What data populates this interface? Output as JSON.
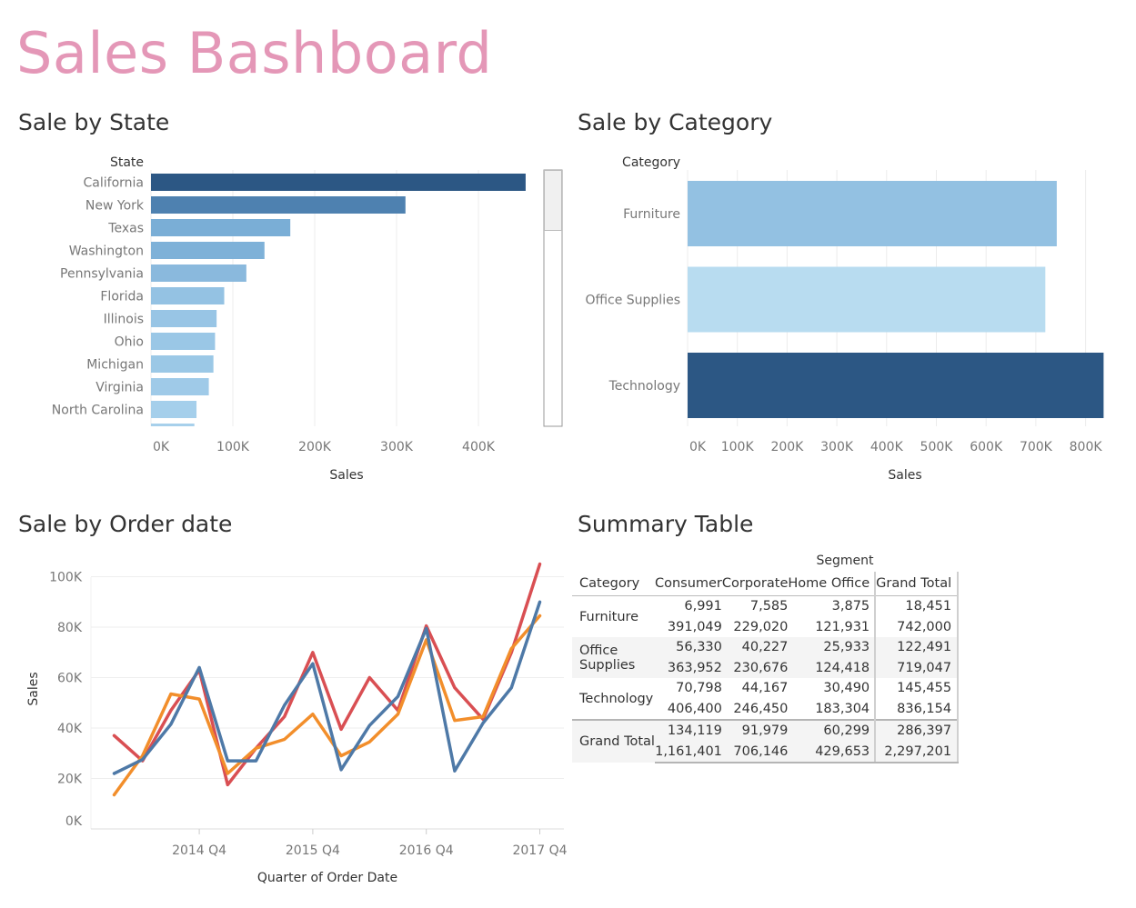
{
  "dashboard": {
    "title": "Sales Bashboard"
  },
  "panels": {
    "state": {
      "title": "Sale by State"
    },
    "category": {
      "title": "Sale by Category"
    },
    "order_date": {
      "title": "Sale by Order date"
    },
    "summary": {
      "title": "Summary Table"
    }
  },
  "colors": {
    "title_pink": "#e497b7",
    "dark_blue": "#2c5784",
    "furniture": "#93c1e2",
    "office_supplies": "#b8dcf0",
    "technology": "#2c5784",
    "line_red": "#d94f53",
    "line_orange": "#f28e2b",
    "line_blue": "#4e79a7"
  },
  "chart_data": [
    {
      "id": "state",
      "type": "bar",
      "orientation": "horizontal",
      "header": "State",
      "categories": [
        "California",
        "New York",
        "Texas",
        "Washington",
        "Pennsylvania",
        "Florida",
        "Illinois",
        "Ohio",
        "Michigan",
        "Virginia",
        "North Carolina"
      ],
      "values": [
        457688,
        310876,
        170188,
        138641,
        116512,
        89474,
        80166,
        78258,
        76270,
        70637,
        55603
      ],
      "colors": [
        "#2c5784",
        "#4e81b0",
        "#7aaed6",
        "#7eb1d8",
        "#8ab9dd",
        "#94c2e3",
        "#98c5e5",
        "#9ac7e6",
        "#9bc8e6",
        "#9fcae8",
        "#a5cfeb"
      ],
      "partial_next_bar": {
        "value": 53000,
        "color": "#a7d0eb"
      },
      "xlabel": "Sales",
      "xticks": [
        0,
        100000,
        200000,
        300000,
        400000
      ],
      "xtick_labels": [
        "0K",
        "100K",
        "200K",
        "300K",
        "400K"
      ],
      "xlim": [
        0,
        500000
      ]
    },
    {
      "id": "category",
      "type": "bar",
      "orientation": "horizontal",
      "header": "Category",
      "categories": [
        "Furniture",
        "Office Supplies",
        "Technology"
      ],
      "values": [
        742000,
        719047,
        836154
      ],
      "colors": [
        "#93c1e2",
        "#b8dcf0",
        "#2c5784"
      ],
      "xlabel": "Sales",
      "xticks": [
        0,
        100000,
        200000,
        300000,
        400000,
        500000,
        600000,
        700000,
        800000
      ],
      "xtick_labels": [
        "0K",
        "100K",
        "200K",
        "300K",
        "400K",
        "500K",
        "600K",
        "700K",
        "800K"
      ],
      "xlim": [
        0,
        850000
      ]
    },
    {
      "id": "order_date",
      "type": "line",
      "x": [
        "2014 Q1",
        "2014 Q2",
        "2014 Q3",
        "2014 Q4",
        "2015 Q1",
        "2015 Q2",
        "2015 Q3",
        "2015 Q4",
        "2016 Q1",
        "2016 Q2",
        "2016 Q3",
        "2016 Q4",
        "2017 Q1",
        "2017 Q2",
        "2017 Q3",
        "2017 Q4"
      ],
      "xtick_labels": {
        "3": "2014 Q4",
        "7": "2015 Q4",
        "11": "2016 Q4",
        "15": "2017 Q4"
      },
      "series": [
        {
          "color": "#d94f53",
          "values": [
            37000,
            27000,
            47000,
            63000,
            17500,
            32000,
            44500,
            70000,
            39500,
            60000,
            47000,
            80500,
            56000,
            43500,
            70000,
            105000
          ]
        },
        {
          "color": "#f28e2b",
          "values": [
            13500,
            29000,
            53500,
            51500,
            22000,
            32000,
            35500,
            45500,
            29000,
            34500,
            45500,
            75000,
            43000,
            44500,
            71500,
            84500
          ]
        },
        {
          "color": "#4e79a7",
          "values": [
            22000,
            27500,
            41500,
            64000,
            27000,
            27000,
            49000,
            65500,
            23500,
            41000,
            52500,
            79500,
            23000,
            42000,
            56000,
            90000
          ]
        }
      ],
      "xlabel": "Quarter of Order Date",
      "ylabel": "Sales",
      "yticks": [
        0,
        20000,
        40000,
        60000,
        80000,
        100000
      ],
      "ytick_labels": [
        "0K",
        "20K",
        "40K",
        "60K",
        "80K",
        "100K"
      ],
      "ylim": [
        0,
        105000
      ]
    }
  ],
  "summary_table": {
    "segment_header": "Segment",
    "columns": [
      "Category",
      "Consumer",
      "Corporate",
      "Home Office",
      "Grand Total"
    ],
    "rows": [
      {
        "category": "Furniture",
        "r1": [
          "6,991",
          "7,585",
          "3,875",
          "18,451"
        ],
        "r2": [
          "391,049",
          "229,020",
          "121,931",
          "742,000"
        ]
      },
      {
        "category": "Office Supplies",
        "r1": [
          "56,330",
          "40,227",
          "25,933",
          "122,491"
        ],
        "r2": [
          "363,952",
          "230,676",
          "124,418",
          "719,047"
        ]
      },
      {
        "category": "Technology",
        "r1": [
          "70,798",
          "44,167",
          "30,490",
          "145,455"
        ],
        "r2": [
          "406,400",
          "246,450",
          "183,304",
          "836,154"
        ]
      },
      {
        "category": "Grand Total",
        "r1": [
          "134,119",
          "91,979",
          "60,299",
          "286,397"
        ],
        "r2": [
          "1,161,401",
          "706,146",
          "429,653",
          "2,297,201"
        ]
      }
    ]
  }
}
